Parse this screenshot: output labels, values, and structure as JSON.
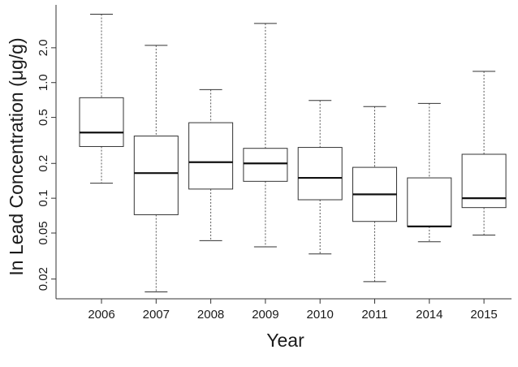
{
  "chart_data": {
    "type": "box",
    "xlabel": "Year",
    "ylabel": "In Lead Concentration (μg/g)",
    "yscale": "log",
    "ylim": [
      0.0135,
      4.7
    ],
    "yticks": [
      {
        "value": 0.02,
        "label": "0.02"
      },
      {
        "value": 0.05,
        "label": "0.05"
      },
      {
        "value": 0.1,
        "label": "0.1"
      },
      {
        "value": 0.2,
        "label": "0.2"
      },
      {
        "value": 0.5,
        "label": "0.5"
      },
      {
        "value": 1.0,
        "label": "1.0"
      },
      {
        "value": 2.0,
        "label": "2.0"
      }
    ],
    "categories": [
      "2006",
      "2007",
      "2008",
      "2009",
      "2010",
      "2011",
      "2014",
      "2015"
    ],
    "boxes": [
      {
        "category": "2006",
        "min": 0.135,
        "q1": 0.28,
        "median": 0.37,
        "q3": 0.74,
        "max": 3.9
      },
      {
        "category": "2007",
        "min": 0.0155,
        "q1": 0.072,
        "median": 0.165,
        "q3": 0.345,
        "max": 2.1
      },
      {
        "category": "2008",
        "min": 0.043,
        "q1": 0.12,
        "median": 0.205,
        "q3": 0.45,
        "max": 0.87
      },
      {
        "category": "2009",
        "min": 0.038,
        "q1": 0.14,
        "median": 0.2,
        "q3": 0.27,
        "max": 3.25
      },
      {
        "category": "2010",
        "min": 0.033,
        "q1": 0.097,
        "median": 0.15,
        "q3": 0.275,
        "max": 0.7
      },
      {
        "category": "2011",
        "min": 0.019,
        "q1": 0.063,
        "median": 0.108,
        "q3": 0.185,
        "max": 0.62
      },
      {
        "category": "2014",
        "min": 0.042,
        "q1": 0.057,
        "median": 0.057,
        "q3": 0.15,
        "max": 0.66
      },
      {
        "category": "2015",
        "min": 0.048,
        "q1": 0.083,
        "median": 0.1,
        "q3": 0.24,
        "max": 1.25
      }
    ],
    "grid": false,
    "legend": "none"
  }
}
